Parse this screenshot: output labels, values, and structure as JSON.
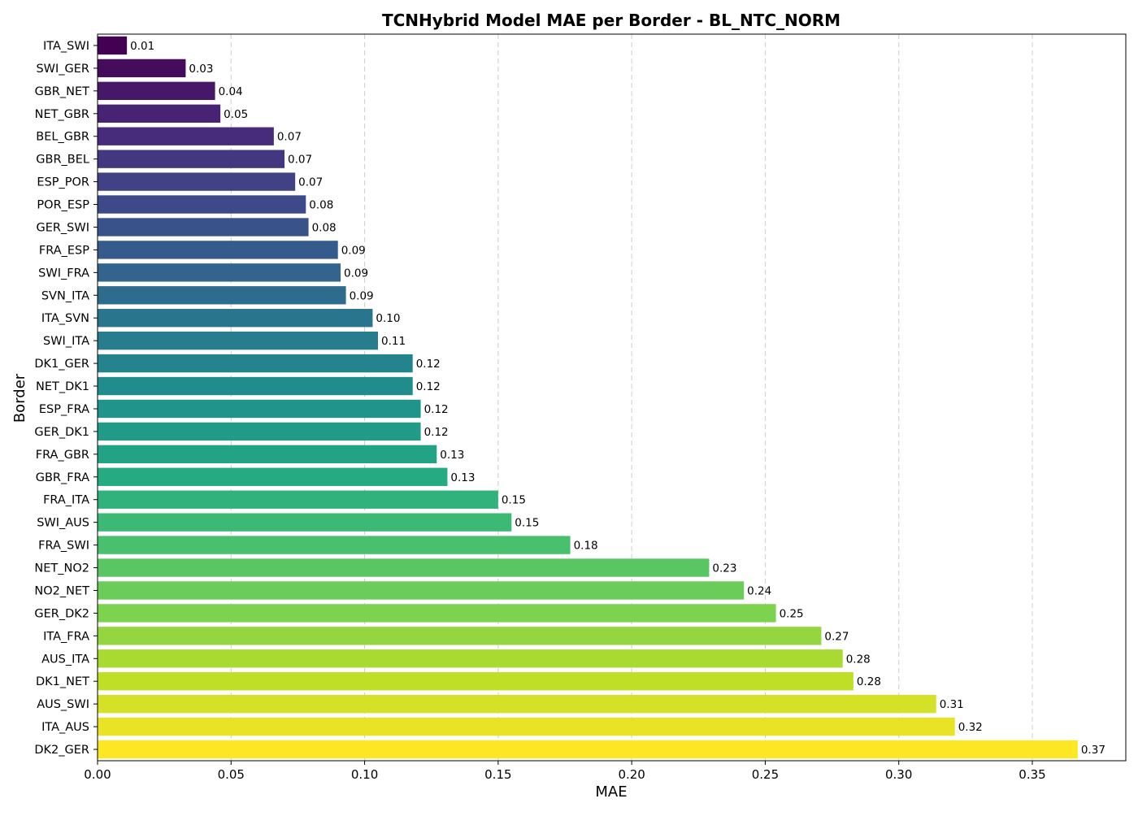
{
  "chart_data": {
    "type": "bar",
    "orientation": "horizontal",
    "title": "TCNHybrid Model MAE per Border - BL_NTC_NORM",
    "xlabel": "MAE",
    "ylabel": "Border",
    "xlim": [
      0,
      0.385
    ],
    "xticks": [
      "0.00",
      "0.05",
      "0.10",
      "0.15",
      "0.20",
      "0.25",
      "0.30",
      "0.35"
    ],
    "grid": "x-dashed",
    "colormap": "viridis",
    "categories": [
      "ITA_SWI",
      "SWI_GER",
      "GBR_NET",
      "NET_GBR",
      "BEL_GBR",
      "GBR_BEL",
      "ESP_POR",
      "POR_ESP",
      "GER_SWI",
      "FRA_ESP",
      "SWI_FRA",
      "SVN_ITA",
      "ITA_SVN",
      "SWI_ITA",
      "DK1_GER",
      "NET_DK1",
      "ESP_FRA",
      "GER_DK1",
      "FRA_GBR",
      "GBR_FRA",
      "FRA_ITA",
      "SWI_AUS",
      "FRA_SWI",
      "NET_NO2",
      "NO2_NET",
      "GER_DK2",
      "ITA_FRA",
      "AUS_ITA",
      "DK1_NET",
      "AUS_SWI",
      "ITA_AUS",
      "DK2_GER"
    ],
    "values": [
      0.011,
      0.033,
      0.044,
      0.046,
      0.066,
      0.07,
      0.074,
      0.078,
      0.079,
      0.09,
      0.091,
      0.093,
      0.103,
      0.105,
      0.118,
      0.118,
      0.121,
      0.121,
      0.127,
      0.131,
      0.15,
      0.155,
      0.177,
      0.229,
      0.242,
      0.254,
      0.271,
      0.279,
      0.283,
      0.314,
      0.321,
      0.367
    ],
    "value_labels": [
      "0.01",
      "0.03",
      "0.04",
      "0.05",
      "0.07",
      "0.07",
      "0.07",
      "0.08",
      "0.08",
      "0.09",
      "0.09",
      "0.09",
      "0.10",
      "0.11",
      "0.12",
      "0.12",
      "0.12",
      "0.12",
      "0.13",
      "0.13",
      "0.15",
      "0.15",
      "0.18",
      "0.23",
      "0.24",
      "0.25",
      "0.27",
      "0.28",
      "0.28",
      "0.31",
      "0.32",
      "0.37"
    ]
  }
}
